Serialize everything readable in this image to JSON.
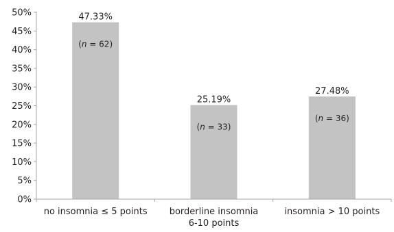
{
  "chart_data": {
    "type": "bar",
    "title": "",
    "xlabel": "",
    "ylabel": "",
    "ylim": [
      0,
      50
    ],
    "ytick_step": 5,
    "ytick_suffix": "%",
    "grid": false,
    "bar_color": "#c3c3c3",
    "axis_color": "#a6a6a6",
    "categories": [
      [
        "no insomnia ≤ 5 points"
      ],
      [
        "borderline insomnia",
        "6-10 points"
      ],
      [
        "insomnia > 10 points"
      ]
    ],
    "values": [
      47.33,
      25.19,
      27.48
    ],
    "value_labels": [
      "47.33%",
      "25.19%",
      "27.48%"
    ],
    "n_values": [
      62,
      33,
      36
    ]
  }
}
